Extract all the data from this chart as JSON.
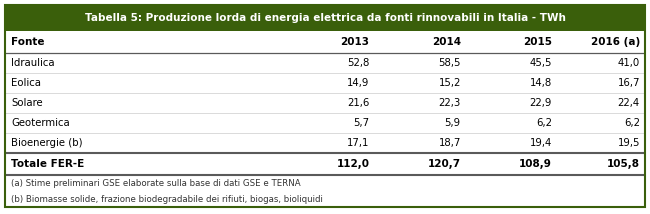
{
  "title": "Tabella 5: Produzione lorda di energia elettrica da fonti rinnovabili in Italia - TWh",
  "title_bg": "#3a5f0b",
  "title_color": "#ffffff",
  "header_row": [
    "Fonte",
    "2013",
    "2014",
    "2015",
    "2016 (a)"
  ],
  "rows": [
    [
      "Idraulica",
      "52,8",
      "58,5",
      "45,5",
      "41,0"
    ],
    [
      "Eolica",
      "14,9",
      "15,2",
      "14,8",
      "16,7"
    ],
    [
      "Solare",
      "21,6",
      "22,3",
      "22,9",
      "22,4"
    ],
    [
      "Geotermica",
      "5,7",
      "5,9",
      "6,2",
      "6,2"
    ],
    [
      "Bioenergie (b)",
      "17,1",
      "18,7",
      "19,4",
      "19,5"
    ]
  ],
  "total_row": [
    "Totale FER-E",
    "112,0",
    "120,7",
    "108,9",
    "105,8"
  ],
  "footnotes": [
    "(a) Stime preliminari GSE elaborate sulla base di dati GSE e TERNA",
    "(b) Biomasse solide, frazione biodegradabile dei rifiuti, biogas, bioliquidi"
  ],
  "title_bg_color": "#3a5f0b",
  "title_text_color": "#ffffff",
  "border_color": "#5a5a5a",
  "outer_border_color": "#3a5f0b",
  "row_bg": "#ffffff",
  "text_color": "#000000",
  "footnote_color": "#333333"
}
